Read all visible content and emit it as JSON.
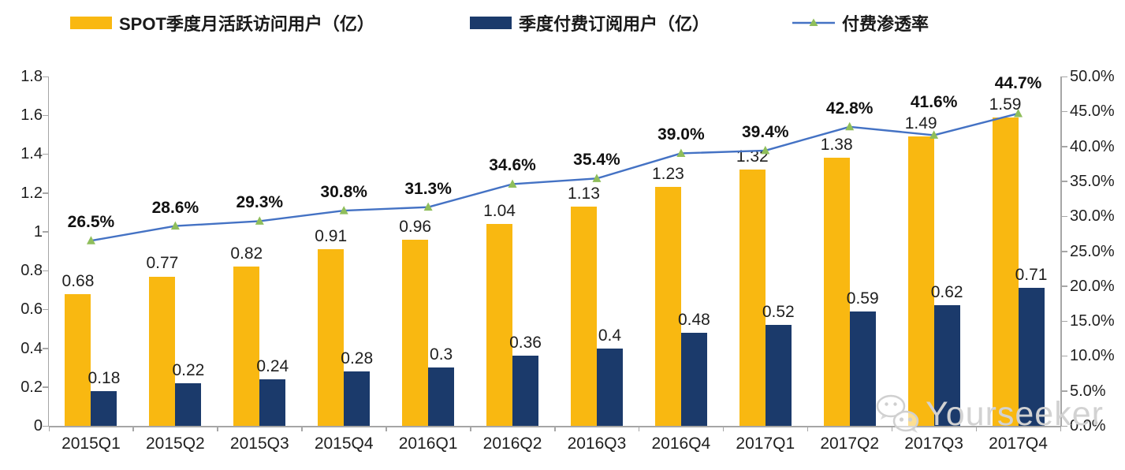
{
  "legend": {
    "mau_label": "SPOT季度月活跃访问用户（亿）",
    "subs_label": "季度付费订阅用户（亿）",
    "penetration_label": "付费渗透率"
  },
  "watermark": {
    "text": "Yourseeker",
    "icon": "wechat-icon"
  },
  "colors": {
    "mau_bar": "#F9B811",
    "subs_bar": "#1B3A6B",
    "line": "#4472C4",
    "marker": "#8FBE5B",
    "axis": "#A6A6A6",
    "text": "#1F1F1F",
    "watermark": "#D2D2D2"
  },
  "chart_data": {
    "type": "bar",
    "subtype": "grouped bars with secondary-axis line",
    "categories": [
      "2015Q1",
      "2015Q2",
      "2015Q3",
      "2015Q4",
      "2016Q1",
      "2016Q2",
      "2016Q3",
      "2016Q4",
      "2017Q1",
      "2017Q2",
      "2017Q3",
      "2017Q4"
    ],
    "series": [
      {
        "name": "SPOT季度月活跃访问用户（亿）",
        "type": "bar",
        "axis": "left",
        "values": [
          0.68,
          0.77,
          0.82,
          0.91,
          0.96,
          1.04,
          1.13,
          1.23,
          1.32,
          1.38,
          1.49,
          1.59
        ],
        "labels": [
          "0.68",
          "0.77",
          "0.82",
          "0.91",
          "0.96",
          "1.04",
          "1.13",
          "1.23",
          "1.32",
          "1.38",
          "1.49",
          "1.59"
        ]
      },
      {
        "name": "季度付费订阅用户（亿）",
        "type": "bar",
        "axis": "left",
        "values": [
          0.18,
          0.22,
          0.24,
          0.28,
          0.3,
          0.36,
          0.4,
          0.48,
          0.52,
          0.59,
          0.62,
          0.71
        ],
        "labels": [
          "0.18",
          "0.22",
          "0.24",
          "0.28",
          "0.3",
          "0.36",
          "0.4",
          "0.48",
          "0.52",
          "0.59",
          "0.62",
          "0.71"
        ]
      },
      {
        "name": "付费渗透率",
        "type": "line",
        "axis": "right",
        "values": [
          26.5,
          28.6,
          29.3,
          30.8,
          31.3,
          34.6,
          35.4,
          39.0,
          39.4,
          42.8,
          41.6,
          44.7
        ],
        "labels": [
          "26.5%",
          "28.6%",
          "29.3%",
          "30.8%",
          "31.3%",
          "34.6%",
          "35.4%",
          "39.0%",
          "39.4%",
          "42.8%",
          "41.6%",
          "44.7%"
        ]
      }
    ],
    "left_axis": {
      "min": 0,
      "max": 1.8,
      "ticks": [
        "1.8",
        "1.6",
        "1.4",
        "1.2",
        "1",
        "0.8",
        "0.6",
        "0.4",
        "0.2",
        "0"
      ]
    },
    "right_axis": {
      "min": 0,
      "max": 50,
      "ticks": [
        "50.0%",
        "45.0%",
        "40.0%",
        "35.0%",
        "30.0%",
        "25.0%",
        "20.0%",
        "15.0%",
        "10.0%",
        "5.0%",
        "0.0%"
      ]
    },
    "grid": false,
    "legend_position": "top"
  }
}
